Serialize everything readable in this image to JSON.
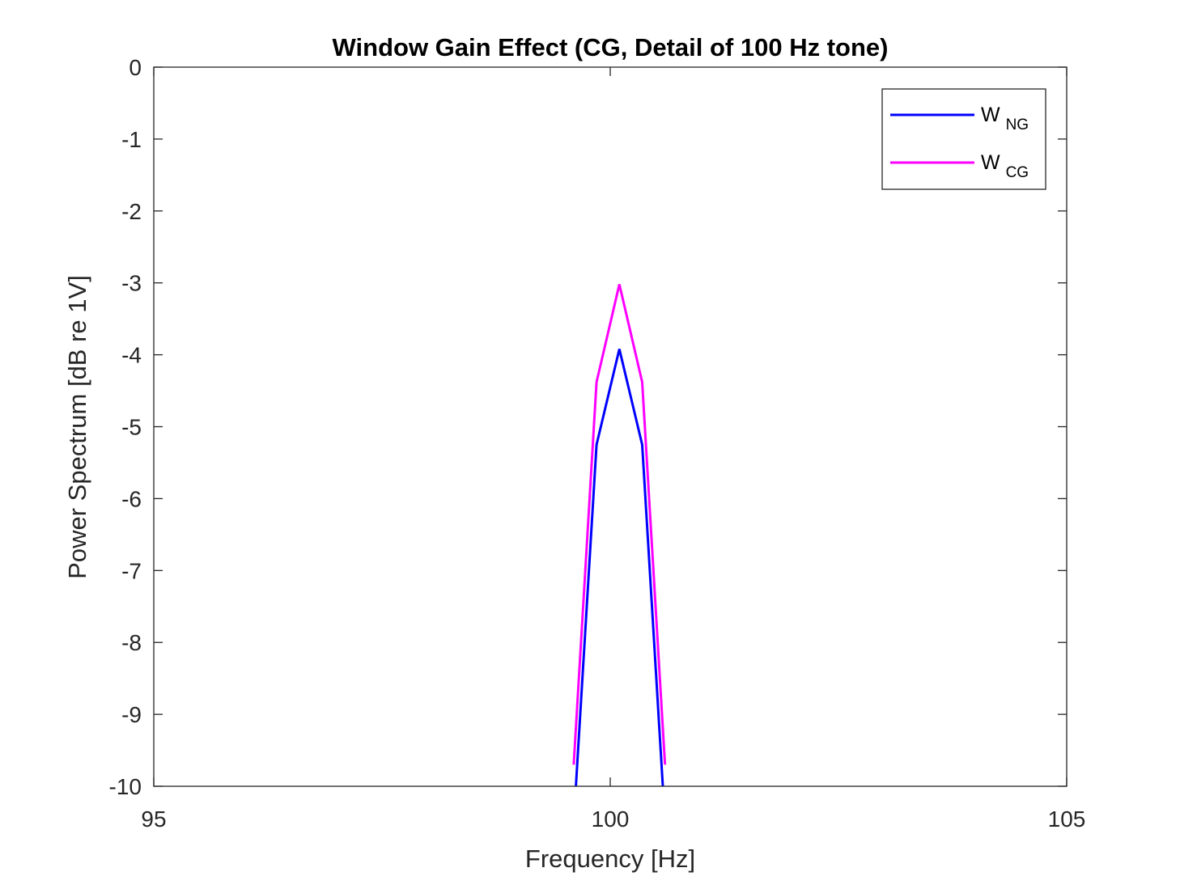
{
  "chart_data": {
    "type": "line",
    "title": "Window Gain Effect (CG, Detail of 100 Hz tone)",
    "xlabel": "Frequency [Hz]",
    "ylabel": "Power Spectrum [dB re 1V]",
    "xlim": [
      95,
      105
    ],
    "ylim": [
      -10,
      0
    ],
    "xticks": [
      95,
      100,
      105
    ],
    "xtick_labels": [
      "95",
      "100",
      "105"
    ],
    "yticks": [
      0,
      -1,
      -2,
      -3,
      -4,
      -5,
      -6,
      -7,
      -8,
      -9,
      -10
    ],
    "ytick_labels": [
      "0",
      "-1",
      "-2",
      "-3",
      "-4",
      "-5",
      "-6",
      "-7",
      "-8",
      "-9",
      "-10"
    ],
    "grid": false,
    "legend_position": "top-right",
    "series": [
      {
        "name": "W",
        "name_subscript": "NG",
        "color": "#0000ff",
        "x": [
          99.6,
          99.85,
          100.1,
          100.35,
          100.6
        ],
        "y": [
          -10.5,
          -5.25,
          -3.92,
          -5.25,
          -10.5
        ]
      },
      {
        "name": "W",
        "name_subscript": "CG",
        "color": "#ff00ff",
        "x": [
          99.6,
          99.85,
          100.1,
          100.35,
          100.6
        ],
        "y": [
          -9.7,
          -4.38,
          -3.02,
          -4.38,
          -9.7
        ]
      }
    ]
  }
}
